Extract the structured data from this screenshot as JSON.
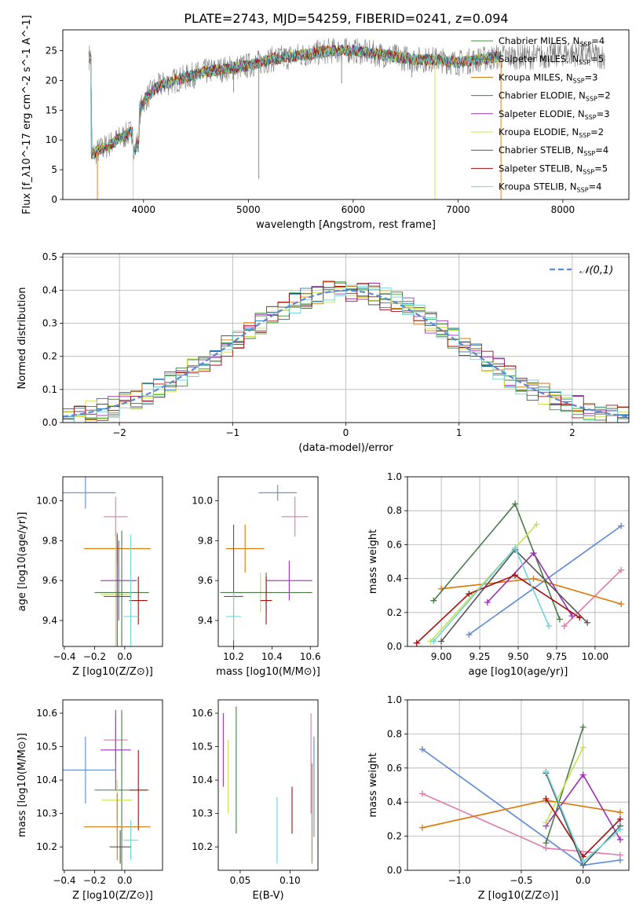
{
  "title": "PLATE=2743, MJD=54259, FIBERID=0241, z=0.094",
  "colors": {
    "chabrier_miles": "#2ca02c",
    "salpeter_miles": "#1f77b4",
    "kroupa_miles": "#d97706",
    "chabrier_elodie": "#4a7a4a",
    "salpeter_elodie": "#9b30b0",
    "kroupa_elodie": "#c8e04a",
    "chabrier_stelib": "#555555",
    "salpeter_stelib": "#a01010",
    "kroupa_stelib": "#6cd4d8",
    "blue": "#5b88d6",
    "pink": "#e07aa8",
    "grid": "#b0b0b0",
    "spectrum": "#808080"
  },
  "chart_data": [
    {
      "id": "spectrum",
      "type": "line",
      "xlabel": "wavelength [Angstrom, rest frame]",
      "ylabel": "Flux [f_λ10^-17 erg cm^-2 s^-1 A^-1]",
      "xlim": [
        3230,
        8630
      ],
      "ylim": [
        0,
        28.5
      ],
      "xticks": [
        4000,
        5000,
        6000,
        7000,
        8000
      ],
      "yticks": [
        0,
        5,
        10,
        15,
        20,
        25
      ],
      "legend_position": "top-right",
      "legend": [
        {
          "label": "Chabrier MILES, N",
          "sub": "SSP",
          "tail": "=4",
          "color": "#2ca02c"
        },
        {
          "label": "Salpeter MILES, N",
          "sub": "SSP",
          "tail": "=5",
          "color": "#1f77b4"
        },
        {
          "label": "Kroupa MILES, N",
          "sub": "SSP",
          "tail": "=3",
          "color": "#d97706"
        },
        {
          "label": "Chabrier ELODIE, N",
          "sub": "SSP",
          "tail": "=2",
          "color": "#4a7a4a"
        },
        {
          "label": "Salpeter ELODIE, N",
          "sub": "SSP",
          "tail": "=3",
          "color": "#9b30b0"
        },
        {
          "label": "Kroupa ELODIE, N",
          "sub": "SSP",
          "tail": "=2",
          "color": "#c8e04a"
        },
        {
          "label": "Chabrier STELIB, N",
          "sub": "SSP",
          "tail": "=4",
          "color": "#555555"
        },
        {
          "label": "Salpeter STELIB, N",
          "sub": "SSP",
          "tail": "=5",
          "color": "#a01010"
        },
        {
          "label": "Kroupa STELIB, N",
          "sub": "SSP",
          "tail": "=4",
          "color": "#6cd4d8"
        }
      ],
      "continuum": {
        "x": [
          3500,
          3600,
          3700,
          3800,
          3900,
          4000,
          4100,
          4200,
          4300,
          4400,
          4500,
          4600,
          4800,
          5000,
          5200,
          5400,
          5600,
          5800,
          6000,
          6200,
          6400,
          6600,
          6800,
          7000,
          7200,
          7400,
          7600,
          7800,
          8000,
          8200,
          8400
        ],
        "y": [
          7.5,
          8.5,
          9.5,
          10.5,
          11.5,
          16.5,
          18.5,
          19.5,
          20.0,
          20.5,
          21.0,
          21.5,
          22.0,
          22.5,
          23.5,
          24.0,
          24.5,
          25.0,
          25.0,
          24.5,
          24.0,
          23.5,
          23.5,
          23.0,
          23.5,
          24.0,
          24.0,
          24.0,
          24.5,
          24.5,
          24.0
        ]
      },
      "spikes": [
        {
          "x": 3560,
          "y": 0,
          "series": "kroupa_miles"
        },
        {
          "x": 3900,
          "y": 0,
          "series": "kroupa_elodie"
        },
        {
          "x": 5100,
          "y": 3.5,
          "series": "spectrum"
        },
        {
          "x": 6780,
          "y": 0,
          "series": "kroupa_elodie"
        },
        {
          "x": 7410,
          "y": 0,
          "series": "kroupa_miles"
        },
        {
          "x": 5890,
          "y": 19.5,
          "series": "spectrum"
        },
        {
          "x": 4860,
          "y": 18.0,
          "series": "spectrum"
        },
        {
          "x": 6560,
          "y": 20.5,
          "series": "spectrum"
        }
      ]
    },
    {
      "id": "residuals",
      "type": "histogram",
      "xlabel": "(data-model)/error",
      "ylabel": "Normed distribution",
      "xlim": [
        -2.5,
        2.5
      ],
      "ylim": [
        0,
        0.51
      ],
      "xticks": [
        -2,
        -1,
        0,
        1,
        2
      ],
      "yticks": [
        0.0,
        0.1,
        0.2,
        0.3,
        0.4,
        0.5
      ],
      "grid": true,
      "legend_position": "top-right",
      "legend": [
        {
          "label": "𝒩(0,1)",
          "color": "#5b88d6",
          "style": "dashed"
        }
      ],
      "bin_width": 0.1
    },
    {
      "id": "age_vs_Z",
      "type": "errorbar",
      "xlabel": "Z [log10(Z/Z⊙)]",
      "ylabel": "age  [log10(age/yr)]",
      "xlim": [
        -0.41,
        0.25
      ],
      "ylim": [
        9.27,
        10.12
      ],
      "xticks": [
        -0.4,
        -0.2,
        0.0
      ],
      "yticks": [
        9.4,
        9.6,
        9.8,
        10.0
      ],
      "points": [
        {
          "series": "blue",
          "x": -0.26,
          "xerr": 0.2,
          "y": 10.04,
          "yerr": 0.08
        },
        {
          "series": "pink",
          "x": -0.06,
          "xerr": 0.08,
          "y": 9.92,
          "yerr": 0.1
        },
        {
          "series": "kroupa_miles",
          "x": -0.05,
          "xerr": 0.22,
          "y": 9.76,
          "yerr": 0.08
        },
        {
          "series": "kroupa_elodie",
          "x": -0.06,
          "xerr": 0.1,
          "y": 9.53,
          "yerr": 0.3
        },
        {
          "series": "salpeter_elodie",
          "x": -0.04,
          "xerr": 0.12,
          "y": 9.6,
          "yerr": 0.2
        },
        {
          "series": "chabrier_elodie",
          "x": -0.02,
          "xerr": 0.18,
          "y": 9.54,
          "yerr": 0.31
        },
        {
          "series": "chabrier_stelib",
          "x": -0.05,
          "xerr": 0.09,
          "y": 9.52,
          "yerr": 0.31
        },
        {
          "series": "salpeter_stelib",
          "x": 0.09,
          "xerr": 0.06,
          "y": 9.5,
          "yerr": 0.12
        },
        {
          "series": "kroupa_stelib",
          "x": 0.04,
          "xerr": 0.05,
          "y": 9.42,
          "yerr": 0.41
        }
      ]
    },
    {
      "id": "age_vs_mass",
      "type": "errorbar",
      "xlabel": "mass [log10(M/M⊙)]",
      "ylabel": "",
      "xlim": [
        10.12,
        10.64
      ],
      "ylim": [
        9.27,
        10.12
      ],
      "xticks": [
        10.2,
        10.4,
        10.6
      ],
      "yticks": [
        9.4,
        9.6,
        9.8,
        10.0
      ],
      "points": [
        {
          "series": "blue",
          "x": 10.43,
          "xerr": 0.1,
          "y": 10.04,
          "yerr": 0.04
        },
        {
          "series": "pink",
          "x": 10.52,
          "xerr": 0.07,
          "y": 9.92,
          "yerr": 0.1
        },
        {
          "series": "kroupa_miles",
          "x": 10.26,
          "xerr": 0.1,
          "y": 9.76,
          "yerr": 0.12
        },
        {
          "series": "kroupa_elodie",
          "x": 10.34,
          "xerr": 0.06,
          "y": 9.54,
          "yerr": 0.1
        },
        {
          "series": "salpeter_elodie",
          "x": 10.49,
          "xerr": 0.12,
          "y": 9.6,
          "yerr": 0.1
        },
        {
          "series": "chabrier_elodie",
          "x": 10.37,
          "xerr": 0.24,
          "y": 9.54,
          "yerr": 0.1
        },
        {
          "series": "chabrier_stelib",
          "x": 10.2,
          "xerr": 0.05,
          "y": 9.52,
          "yerr": 0.36
        },
        {
          "series": "salpeter_stelib",
          "x": 10.37,
          "xerr": 0.03,
          "y": 9.5,
          "yerr": 0.12
        },
        {
          "series": "kroupa_stelib",
          "x": 10.2,
          "xerr": 0.04,
          "y": 9.42,
          "yerr": 0.12
        }
      ]
    },
    {
      "id": "weight_vs_age",
      "type": "line",
      "xlabel": "age  [log10(age/yr)]",
      "ylabel": "mass weight",
      "xlim": [
        8.78,
        10.22
      ],
      "ylim": [
        0,
        1.0
      ],
      "xticks": [
        9.0,
        9.25,
        9.5,
        9.75,
        10.0
      ],
      "yticks": [
        0.0,
        0.2,
        0.4,
        0.6,
        0.8,
        1.0
      ],
      "grid": true,
      "series": [
        {
          "name": "blue",
          "x": [
            9.18,
            10.17
          ],
          "y": [
            0.07,
            0.71
          ]
        },
        {
          "name": "pink",
          "x": [
            9.8,
            10.17
          ],
          "y": [
            0.12,
            0.45
          ]
        },
        {
          "name": "kroupa_miles",
          "x": [
            9.0,
            9.6,
            10.17
          ],
          "y": [
            0.34,
            0.4,
            0.25
          ]
        },
        {
          "name": "chabrier_elodie",
          "x": [
            8.95,
            9.48,
            9.77
          ],
          "y": [
            0.27,
            0.84,
            0.16
          ]
        },
        {
          "name": "salpeter_elodie",
          "x": [
            9.3,
            9.6,
            9.85
          ],
          "y": [
            0.26,
            0.55,
            0.18
          ]
        },
        {
          "name": "kroupa_elodie",
          "x": [
            8.93,
            9.62
          ],
          "y": [
            0.03,
            0.72
          ]
        },
        {
          "name": "chabrier_stelib",
          "x": [
            9.0,
            9.48,
            9.95
          ],
          "y": [
            0.03,
            0.57,
            0.14
          ]
        },
        {
          "name": "salpeter_stelib",
          "x": [
            8.84,
            9.18,
            9.48,
            9.9
          ],
          "y": [
            0.02,
            0.31,
            0.42,
            0.17
          ]
        },
        {
          "name": "kroupa_stelib",
          "x": [
            8.95,
            9.48,
            9.7
          ],
          "y": [
            0.03,
            0.58,
            0.12
          ]
        }
      ]
    },
    {
      "id": "mass_vs_Z",
      "type": "errorbar",
      "xlabel": "Z [log10(Z/Z⊙)]",
      "ylabel": "mass [log10(M/M⊙)]",
      "xlim": [
        -0.41,
        0.25
      ],
      "ylim": [
        10.13,
        10.64
      ],
      "xticks": [
        -0.4,
        -0.2,
        0.0
      ],
      "yticks": [
        10.2,
        10.3,
        10.4,
        10.5,
        10.6
      ],
      "points": [
        {
          "series": "blue",
          "x": -0.26,
          "xerr": 0.2,
          "y": 10.43,
          "yerr": 0.1
        },
        {
          "series": "pink",
          "x": -0.06,
          "xerr": 0.08,
          "y": 10.52,
          "yerr": 0.07
        },
        {
          "series": "salpeter_elodie",
          "x": -0.06,
          "xerr": 0.1,
          "y": 10.49,
          "yerr": 0.12
        },
        {
          "series": "chabrier_elodie",
          "x": -0.02,
          "xerr": 0.18,
          "y": 10.37,
          "yerr": 0.24
        },
        {
          "series": "salpeter_stelib",
          "x": 0.09,
          "xerr": 0.06,
          "y": 10.37,
          "yerr": 0.12
        },
        {
          "series": "kroupa_elodie",
          "x": -0.05,
          "xerr": 0.1,
          "y": 10.34,
          "yerr": 0.06
        },
        {
          "series": "kroupa_miles",
          "x": -0.05,
          "xerr": 0.22,
          "y": 10.26,
          "yerr": 0.1
        },
        {
          "series": "kroupa_stelib",
          "x": 0.04,
          "xerr": 0.05,
          "y": 10.22,
          "yerr": 0.06
        },
        {
          "series": "chabrier_stelib",
          "x": -0.03,
          "xerr": 0.07,
          "y": 10.2,
          "yerr": 0.05
        }
      ]
    },
    {
      "id": "mass_vs_EBV",
      "type": "errorbar",
      "xlabel": "E(B-V)",
      "ylabel": "",
      "xlim": [
        0.028,
        0.128
      ],
      "ylim": [
        10.13,
        10.64
      ],
      "xticks": [
        0.05,
        0.1
      ],
      "yticks": [
        10.2,
        10.3,
        10.4,
        10.5,
        10.6
      ],
      "points": [
        {
          "series": "salpeter_elodie",
          "x": 0.033,
          "y": 10.49,
          "yerr": 0.11
        },
        {
          "series": "kroupa_elodie",
          "x": 0.038,
          "y": 10.41,
          "yerr": 0.11
        },
        {
          "series": "chabrier_elodie",
          "x": 0.046,
          "y": 10.43,
          "yerr": 0.19
        },
        {
          "series": "kroupa_stelib",
          "x": 0.087,
          "y": 10.25,
          "yerr": 0.1
        },
        {
          "series": "salpeter_stelib",
          "x": 0.102,
          "y": 10.31,
          "yerr": 0.07
        },
        {
          "series": "pink",
          "x": 0.121,
          "y": 10.45,
          "yerr": 0.15
        },
        {
          "series": "kroupa_miles",
          "x": 0.122,
          "y": 10.3,
          "yerr": 0.15
        },
        {
          "series": "blue",
          "x": 0.124,
          "y": 10.38,
          "yerr": 0.15
        }
      ]
    },
    {
      "id": "weight_vs_Z",
      "type": "line",
      "xlabel": "Z [log10(Z/Z⊙)]",
      "ylabel": "mass weight",
      "xlim": [
        -1.42,
        0.37
      ],
      "ylim": [
        0,
        1.0
      ],
      "xticks": [
        -1.0,
        -0.5,
        0.0
      ],
      "yticks": [
        0.0,
        0.2,
        0.4,
        0.6,
        0.8,
        1.0
      ],
      "grid": true,
      "series": [
        {
          "name": "blue",
          "x": [
            -1.3,
            0.0,
            0.3
          ],
          "y": [
            0.71,
            0.03,
            0.06
          ]
        },
        {
          "name": "pink",
          "x": [
            -1.3,
            -0.3,
            0.3
          ],
          "y": [
            0.45,
            0.13,
            0.09
          ]
        },
        {
          "name": "kroupa_miles",
          "x": [
            -1.3,
            -0.3,
            0.3
          ],
          "y": [
            0.25,
            0.41,
            0.34
          ]
        },
        {
          "name": "chabrier_elodie",
          "x": [
            -0.3,
            0.0
          ],
          "y": [
            0.16,
            0.84
          ]
        },
        {
          "name": "salpeter_elodie",
          "x": [
            -0.3,
            0.0,
            0.3
          ],
          "y": [
            0.26,
            0.56,
            0.18
          ]
        },
        {
          "name": "kroupa_elodie",
          "x": [
            -0.3,
            0.0
          ],
          "y": [
            0.28,
            0.72
          ]
        },
        {
          "name": "chabrier_stelib",
          "x": [
            -0.3,
            0.0,
            0.3
          ],
          "y": [
            0.57,
            0.03,
            0.26
          ]
        },
        {
          "name": "salpeter_stelib",
          "x": [
            -0.3,
            0.0,
            0.3
          ],
          "y": [
            0.42,
            0.08,
            0.3
          ]
        },
        {
          "name": "kroupa_stelib",
          "x": [
            -0.3,
            0.0,
            0.3
          ],
          "y": [
            0.58,
            0.05,
            0.24
          ]
        }
      ]
    }
  ]
}
